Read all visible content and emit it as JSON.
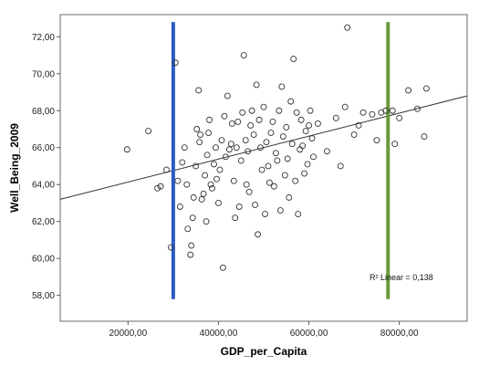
{
  "chart_data": {
    "type": "scatter",
    "xlabel": "GDP_per_Capita",
    "ylabel": "Well_Being_2009",
    "xlim": [
      5000,
      95000
    ],
    "ylim": [
      56.6,
      73.2
    ],
    "x_ticks": [
      20000,
      40000,
      60000,
      80000
    ],
    "x_tick_labels": [
      "20000,00",
      "40000,00",
      "60000,00",
      "80000,00"
    ],
    "y_ticks": [
      58,
      60,
      62,
      64,
      66,
      68,
      70,
      72
    ],
    "y_tick_labels": [
      "58,00",
      "60,00",
      "62,00",
      "64,00",
      "66,00",
      "68,00",
      "70,00",
      "72,00"
    ],
    "grid": false,
    "annotation": "R² Linear = 0,138",
    "fit_line": {
      "x": [
        5000,
        95000
      ],
      "y": [
        63.2,
        68.8
      ]
    },
    "vertical_lines": [
      {
        "x": 30000,
        "y_range": [
          57.8,
          72.8
        ],
        "color": "#2a5cc4"
      },
      {
        "x": 77500,
        "y_range": [
          57.8,
          72.8
        ],
        "color": "#6a9a3c"
      }
    ],
    "marker_color": "#333333",
    "points": [
      [
        19800,
        65.9
      ],
      [
        24500,
        66.9
      ],
      [
        26500,
        63.8
      ],
      [
        27200,
        63.9
      ],
      [
        28500,
        64.8
      ],
      [
        29500,
        60.6
      ],
      [
        30500,
        70.6
      ],
      [
        31000,
        64.2
      ],
      [
        31500,
        62.8
      ],
      [
        32000,
        65.2
      ],
      [
        32500,
        66.0
      ],
      [
        33000,
        64.0
      ],
      [
        33200,
        61.6
      ],
      [
        33800,
        60.2
      ],
      [
        34000,
        60.7
      ],
      [
        34300,
        62.2
      ],
      [
        34500,
        63.3
      ],
      [
        35000,
        65.0
      ],
      [
        35200,
        67.0
      ],
      [
        35600,
        69.1
      ],
      [
        35800,
        66.3
      ],
      [
        36000,
        66.7
      ],
      [
        36300,
        63.2
      ],
      [
        36700,
        63.5
      ],
      [
        37000,
        64.5
      ],
      [
        37300,
        62.0
      ],
      [
        37500,
        65.6
      ],
      [
        37800,
        66.8
      ],
      [
        38000,
        67.5
      ],
      [
        38300,
        64.0
      ],
      [
        38600,
        63.8
      ],
      [
        39000,
        65.1
      ],
      [
        39400,
        66.0
      ],
      [
        39600,
        64.3
      ],
      [
        40000,
        63.0
      ],
      [
        40300,
        64.8
      ],
      [
        40700,
        66.4
      ],
      [
        41000,
        59.5
      ],
      [
        41300,
        67.7
      ],
      [
        41600,
        65.5
      ],
      [
        42000,
        68.8
      ],
      [
        42400,
        65.9
      ],
      [
        42800,
        66.2
      ],
      [
        43000,
        67.3
      ],
      [
        43400,
        64.2
      ],
      [
        43700,
        62.2
      ],
      [
        44000,
        66.0
      ],
      [
        44300,
        67.4
      ],
      [
        44600,
        62.8
      ],
      [
        45000,
        65.3
      ],
      [
        45300,
        67.9
      ],
      [
        45600,
        71.0
      ],
      [
        46000,
        66.4
      ],
      [
        46200,
        64.0
      ],
      [
        46500,
        65.8
      ],
      [
        46800,
        63.6
      ],
      [
        47100,
        67.2
      ],
      [
        47400,
        68.0
      ],
      [
        47800,
        66.7
      ],
      [
        48100,
        62.9
      ],
      [
        48400,
        69.4
      ],
      [
        48700,
        61.3
      ],
      [
        49000,
        67.5
      ],
      [
        49300,
        66.0
      ],
      [
        49600,
        64.8
      ],
      [
        50000,
        68.2
      ],
      [
        50300,
        62.4
      ],
      [
        50600,
        66.3
      ],
      [
        51000,
        65.0
      ],
      [
        51300,
        64.1
      ],
      [
        51600,
        66.8
      ],
      [
        52000,
        67.4
      ],
      [
        52300,
        63.9
      ],
      [
        52700,
        65.7
      ],
      [
        53000,
        65.3
      ],
      [
        53400,
        68.0
      ],
      [
        53700,
        62.6
      ],
      [
        54000,
        69.3
      ],
      [
        54300,
        66.6
      ],
      [
        54700,
        64.5
      ],
      [
        55000,
        67.1
      ],
      [
        55300,
        65.4
      ],
      [
        55600,
        63.3
      ],
      [
        56000,
        68.5
      ],
      [
        56300,
        66.2
      ],
      [
        56600,
        70.8
      ],
      [
        57000,
        64.2
      ],
      [
        57300,
        67.9
      ],
      [
        57600,
        62.4
      ],
      [
        58000,
        65.9
      ],
      [
        58300,
        67.5
      ],
      [
        58600,
        66.1
      ],
      [
        59000,
        64.6
      ],
      [
        59300,
        66.9
      ],
      [
        59700,
        65.1
      ],
      [
        60000,
        67.2
      ],
      [
        60300,
        68.0
      ],
      [
        60700,
        66.5
      ],
      [
        61000,
        65.5
      ],
      [
        62000,
        67.3
      ],
      [
        64000,
        65.8
      ],
      [
        66000,
        67.6
      ],
      [
        67000,
        65.0
      ],
      [
        68000,
        68.2
      ],
      [
        68500,
        72.5
      ],
      [
        70000,
        66.7
      ],
      [
        71000,
        67.2
      ],
      [
        72000,
        67.9
      ],
      [
        74000,
        67.8
      ],
      [
        75000,
        66.4
      ],
      [
        76000,
        67.9
      ],
      [
        77000,
        68.0
      ],
      [
        78500,
        68.0
      ],
      [
        79000,
        66.2
      ],
      [
        80000,
        67.6
      ],
      [
        82000,
        69.1
      ],
      [
        84000,
        68.1
      ],
      [
        85500,
        66.6
      ],
      [
        86000,
        69.2
      ]
    ]
  }
}
